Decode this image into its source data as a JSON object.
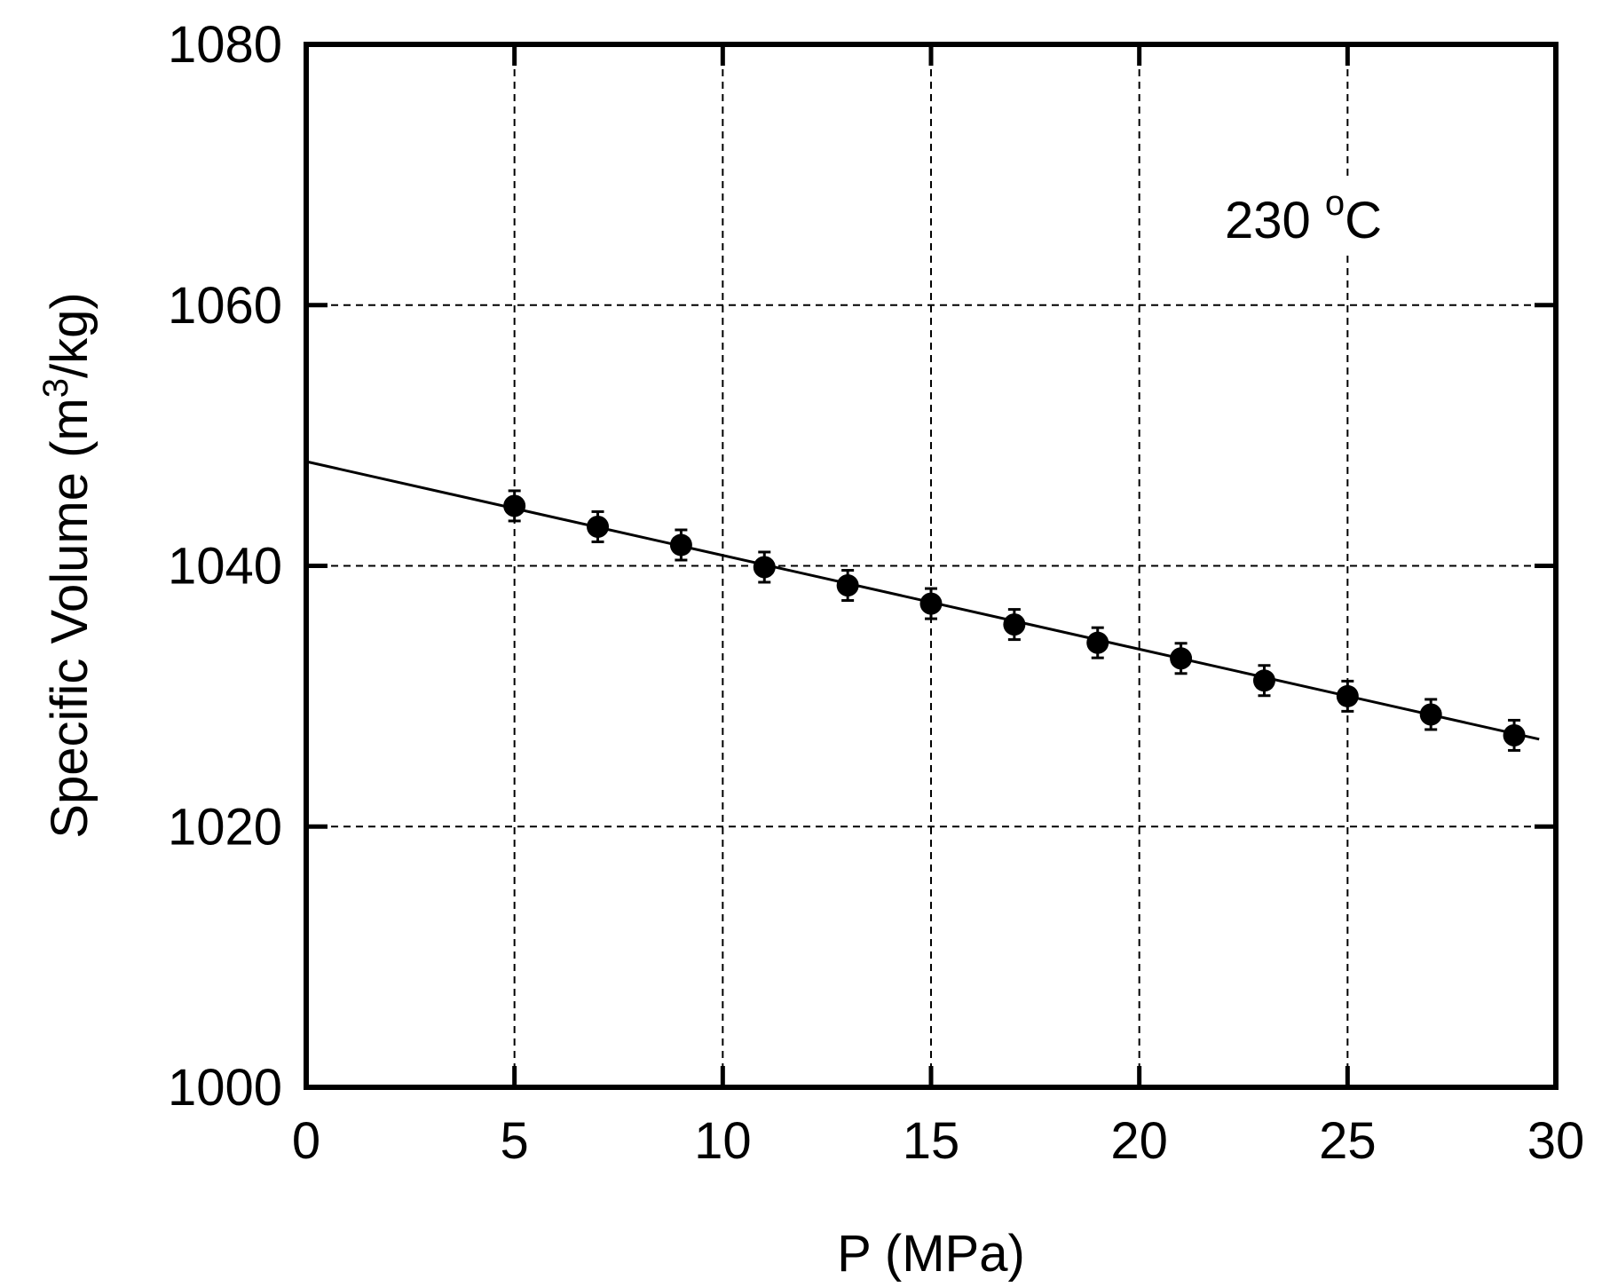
{
  "chart_data": {
    "type": "scatter",
    "title": "",
    "xlabel": "P (MPa)",
    "ylabel": "Specific Volume (m³/kg)",
    "ylabel_parts": {
      "pre": "Specific Volume (m",
      "sup": "3",
      "post": "/kg)"
    },
    "annotation": {
      "pre": "230 ",
      "sup": "o",
      "post": "C"
    },
    "xlim": [
      0,
      30
    ],
    "ylim": [
      1000,
      1080
    ],
    "xticks": [
      "0",
      "5",
      "10",
      "15",
      "20",
      "25",
      "30"
    ],
    "yticks": [
      "1000",
      "1020",
      "1040",
      "1060",
      "1080"
    ],
    "grid": true,
    "series": [
      {
        "type": "scatter",
        "x": [
          5,
          7,
          9,
          11,
          13,
          15,
          17,
          19,
          21,
          23,
          25,
          27,
          29
        ],
        "y": [
          1044.6,
          1043.0,
          1041.6,
          1039.9,
          1038.5,
          1037.1,
          1035.5,
          1034.1,
          1032.9,
          1031.2,
          1030.0,
          1028.6,
          1027.0
        ]
      },
      {
        "type": "line",
        "x": [
          0,
          29.6
        ],
        "y": [
          1048.0,
          1026.7
        ]
      }
    ],
    "colors": {
      "points": "#000000",
      "line": "#000000",
      "grid": "#000000",
      "frame": "#000000"
    }
  }
}
